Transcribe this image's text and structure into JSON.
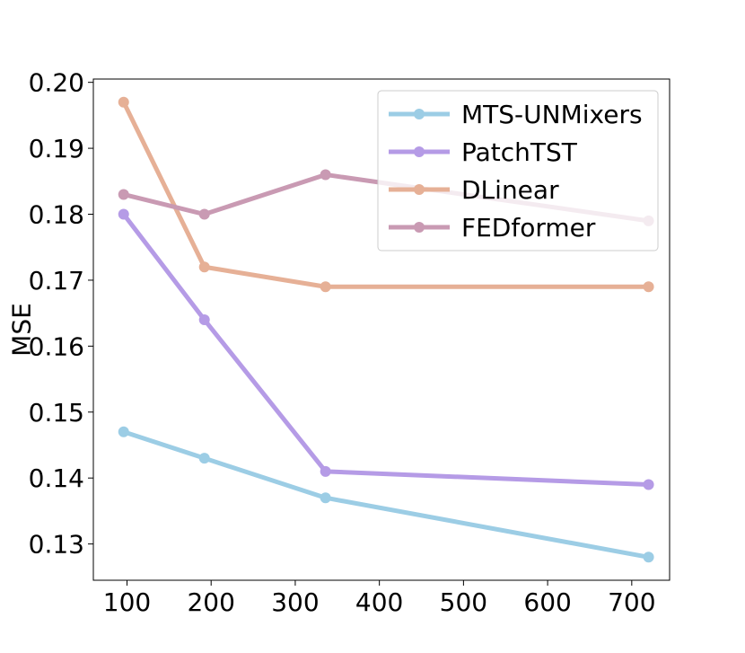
{
  "chart_data": {
    "type": "line",
    "title": "",
    "xlabel": "",
    "ylabel": "MSE",
    "x": [
      96,
      192,
      336,
      720
    ],
    "xlim": [
      60,
      745
    ],
    "ylim": [
      0.1245,
      0.2005
    ],
    "xticks": [
      100,
      200,
      300,
      400,
      500,
      600,
      700
    ],
    "yticks": [
      0.13,
      0.14,
      0.15,
      0.16,
      0.17,
      0.18,
      0.19,
      0.2
    ],
    "ytick_labels": [
      "0.13",
      "0.14",
      "0.15",
      "0.16",
      "0.17",
      "0.18",
      "0.19",
      "0.20"
    ],
    "grid": false,
    "legend_position": "top-right",
    "series": [
      {
        "name": "MTS-UNMixers",
        "color": "#9ccde5",
        "values": [
          0.147,
          0.143,
          0.137,
          0.128
        ]
      },
      {
        "name": "PatchTST",
        "color": "#b59be6",
        "values": [
          0.18,
          0.164,
          0.141,
          0.139
        ]
      },
      {
        "name": "DLinear",
        "color": "#e6b096",
        "values": [
          0.197,
          0.172,
          0.169,
          0.169
        ]
      },
      {
        "name": "FEDformer",
        "color": "#c99ab3",
        "values": [
          0.183,
          0.18,
          0.186,
          0.179
        ]
      }
    ]
  }
}
